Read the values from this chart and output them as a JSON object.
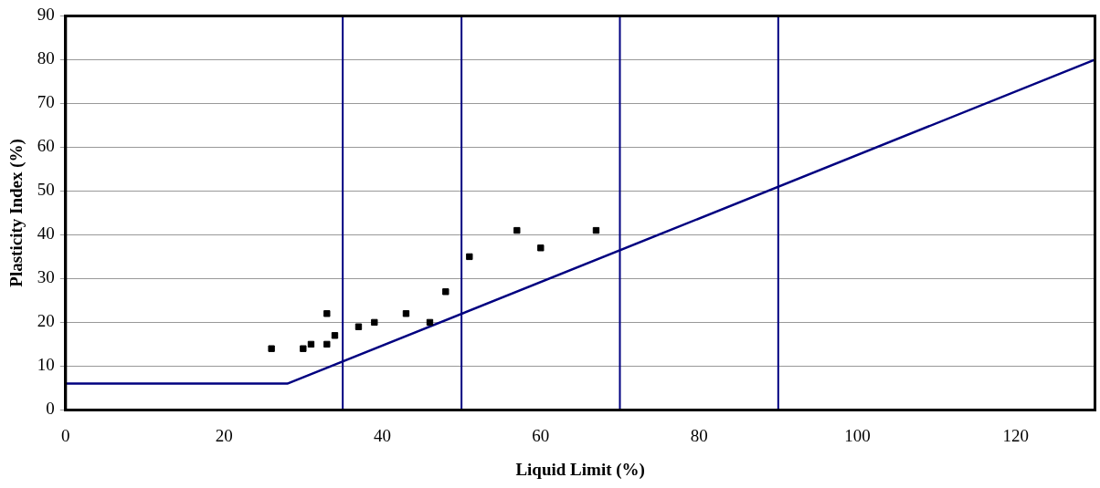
{
  "chart_data": {
    "type": "scatter",
    "xlabel": "Liquid Limit (%)",
    "ylabel": "Plasticity Index (%)",
    "xlim": [
      0,
      130
    ],
    "xticks": [
      0,
      20,
      40,
      60,
      80,
      100,
      120
    ],
    "ylim": [
      0,
      90
    ],
    "yticks": [
      0,
      10,
      20,
      30,
      40,
      50,
      60,
      70,
      80,
      90
    ],
    "grid": "y",
    "legend": false,
    "marker": "square",
    "series": [
      {
        "color": "#000000",
        "x": [
          26,
          30,
          31,
          33,
          33,
          34,
          37,
          39,
          43,
          46,
          48,
          51,
          57,
          60,
          67
        ],
        "values": [
          14,
          14,
          15,
          15,
          22,
          17,
          19,
          20,
          22,
          20,
          27,
          35,
          41,
          37,
          41
        ]
      },
      {
        "type": "line",
        "color": "#000080",
        "x": [
          0,
          28,
          130
        ],
        "values": [
          6,
          6,
          80
        ],
        "marker": "none"
      }
    ],
    "ref_lines": [
      {
        "axis": "x",
        "value": 35,
        "color": "#000080"
      },
      {
        "axis": "x",
        "value": 50,
        "color": "#000080"
      },
      {
        "axis": "x",
        "value": 70,
        "color": "#000080"
      },
      {
        "axis": "x",
        "value": 90,
        "color": "#000080"
      }
    ]
  }
}
